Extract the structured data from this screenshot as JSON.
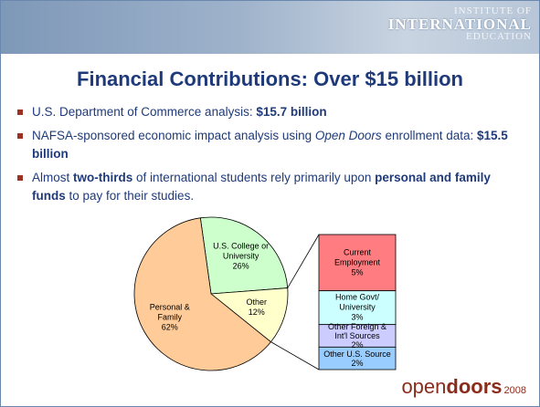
{
  "header": {
    "logo": [
      "INSTITUTE OF",
      "INTERNATIONAL",
      "EDUCATION"
    ]
  },
  "title": "Financial Contributions: Over $15 billion",
  "bullets": [
    [
      {
        "text": "U.S. Department of Commerce analysis: "
      },
      {
        "text": "$15.7 billion",
        "style": "bold"
      }
    ],
    [
      {
        "text": "NAFSA-sponsored economic impact analysis using "
      },
      {
        "text": "Open Doors",
        "style": "italic"
      },
      {
        "text": " enrollment data: "
      },
      {
        "text": "$15.5 billion",
        "style": "bold"
      }
    ],
    [
      {
        "text": "Almost "
      },
      {
        "text": "two-thirds",
        "style": "bold"
      },
      {
        "text": " of international students rely primarily upon "
      },
      {
        "text": "personal and family funds",
        "style": "bold"
      },
      {
        "text": " to pay for their studies."
      }
    ]
  ],
  "chart_data": {
    "type": "pie",
    "categories": [
      "U.S. College or University",
      "Other",
      "Personal & Family"
    ],
    "values": [
      26,
      12,
      62
    ],
    "value_labels": [
      "26%",
      "12%",
      "62%"
    ],
    "colors": [
      "#ccffcc",
      "#ffffcc",
      "#ffcc99"
    ],
    "breakdown": {
      "type": "stacked-bar",
      "categories": [
        "Current Employment",
        "Home Govt/ University",
        "Other Foreign & Int'l Sources",
        "Other U.S. Source"
      ],
      "values": [
        5,
        3,
        2,
        2
      ],
      "value_labels": [
        "5%",
        "3%",
        "2%",
        "2%"
      ],
      "colors": [
        "#ff7c80",
        "#ccffff",
        "#ccccff",
        "#99ccff"
      ]
    }
  },
  "footer": {
    "open": "open",
    "doors": "doors",
    "year": "2008"
  }
}
